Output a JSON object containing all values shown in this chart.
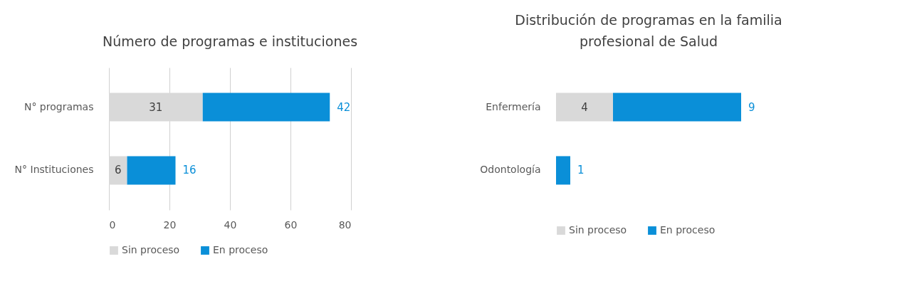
{
  "chart_data": [
    {
      "type": "bar",
      "orientation": "horizontal",
      "stacked": true,
      "title": "Número de programas e instituciones",
      "categories": [
        "N° programas",
        "N° Instituciones"
      ],
      "series": [
        {
          "name": "Sin proceso",
          "color": "#d9d9d9",
          "values": [
            31,
            6
          ]
        },
        {
          "name": "En proceso",
          "color": "#0a8fd8",
          "values": [
            42,
            16
          ]
        }
      ],
      "xlim": [
        0,
        80
      ],
      "xticks": [
        0,
        20,
        40,
        60,
        80
      ],
      "grid": "x",
      "legend": "bottom",
      "data_labels": true
    },
    {
      "type": "bar",
      "orientation": "horizontal",
      "stacked": true,
      "title": "Distribución de programas  en la familia profesional de Salud",
      "categories": [
        "Enfermería",
        "Odontología"
      ],
      "series": [
        {
          "name": "Sin proceso",
          "color": "#d9d9d9",
          "values": [
            4,
            0
          ],
          "value_labels": [
            "4",
            null
          ]
        },
        {
          "name": "En proceso",
          "color": "#0a8fd8",
          "values": [
            9,
            1
          ],
          "value_labels": [
            "9",
            "1"
          ]
        }
      ],
      "legend": "bottom"
    }
  ]
}
